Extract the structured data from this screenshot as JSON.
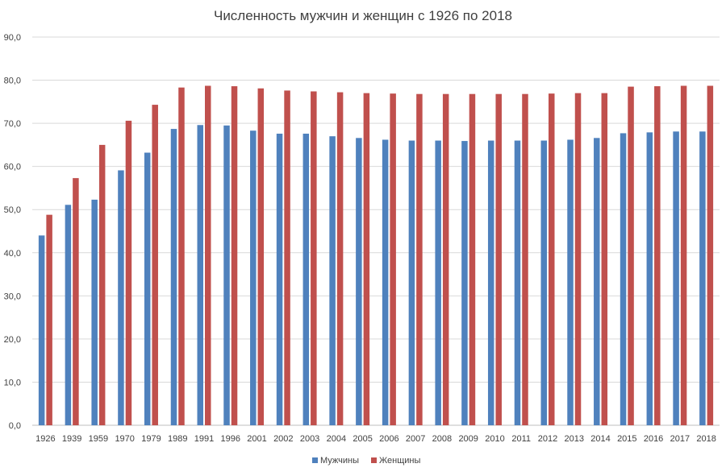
{
  "chart_data": {
    "type": "bar",
    "title": "Численность мужчин и женщин с 1926 по 2018",
    "xlabel": "",
    "ylabel": "",
    "ylim": [
      0,
      90
    ],
    "y_ticks": [
      "0,0",
      "10,0",
      "20,0",
      "30,0",
      "40,0",
      "50,0",
      "60,0",
      "70,0",
      "80,0",
      "90,0"
    ],
    "grid": true,
    "legend_position": "bottom",
    "categories": [
      "1926",
      "1939",
      "1959",
      "1970",
      "1979",
      "1989",
      "1991",
      "1996",
      "2001",
      "2002",
      "2003",
      "2004",
      "2005",
      "2006",
      "2007",
      "2008",
      "2009",
      "2010",
      "2011",
      "2012",
      "2013",
      "2014",
      "2015",
      "2016",
      "2017",
      "2018"
    ],
    "series": [
      {
        "name": "Мужчины",
        "color": "#4f81bd",
        "values": [
          44.0,
          51.1,
          52.3,
          59.1,
          63.2,
          68.7,
          69.6,
          69.5,
          68.3,
          67.6,
          67.6,
          67.0,
          66.6,
          66.2,
          66.0,
          66.0,
          65.9,
          66.0,
          66.0,
          66.0,
          66.2,
          66.6,
          67.7,
          67.9,
          68.1,
          68.1
        ]
      },
      {
        "name": "Женщины",
        "color": "#c0504d",
        "values": [
          48.8,
          57.3,
          65.0,
          70.6,
          74.3,
          78.3,
          78.7,
          78.6,
          78.1,
          77.6,
          77.4,
          77.2,
          77.0,
          76.9,
          76.8,
          76.8,
          76.8,
          76.8,
          76.8,
          76.9,
          77.0,
          77.0,
          78.5,
          78.6,
          78.7,
          78.7
        ]
      }
    ]
  }
}
